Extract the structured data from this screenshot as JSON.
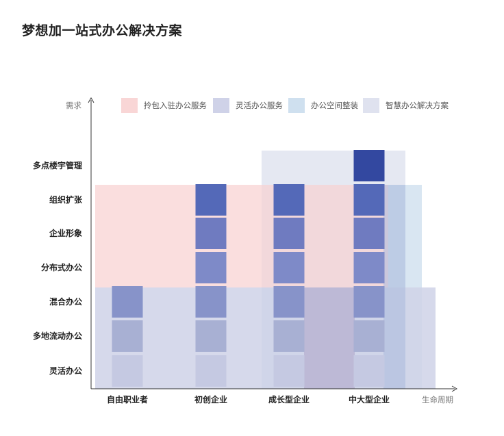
{
  "title": "梦想加一站式办公解决方案",
  "chart_data": {
    "type": "heatmap",
    "title": "梦想加一站式办公解决方案",
    "xlabel": "生命周期",
    "ylabel": "需求",
    "x_categories": [
      "自由职业者",
      "初创企业",
      "成长型企业",
      "中大型企业"
    ],
    "y_categories": [
      "灵活办公",
      "多地流动办公",
      "混合办公",
      "分布式办公",
      "企业形象",
      "组织扩张",
      "多点楼宇管理"
    ],
    "legend": [
      {
        "name": "拎包入驻办公服务",
        "color": "#f9d6d6"
      },
      {
        "name": "灵活办公服务",
        "color": "#cfd2e8"
      },
      {
        "name": "办公空间整装",
        "color": "#cfe0ef"
      },
      {
        "name": "智慧办公解决方案",
        "color": "#dfe2ef"
      }
    ],
    "service_regions": [
      {
        "service": "拎包入驻办公服务",
        "x_from": "自由职业者",
        "x_to": "中大型企业",
        "y_from": "分布式办公",
        "y_to": "组织扩张"
      },
      {
        "service": "灵活办公服务",
        "x_from": "自由职业者",
        "x_to": "中大型企业",
        "y_from": "灵活办公",
        "y_to": "混合办公"
      },
      {
        "service": "办公空间整装",
        "x_from": "成长型企业",
        "x_to": "中大型企业",
        "y_from": "灵活办公",
        "y_to": "组织扩张"
      },
      {
        "service": "智慧办公解决方案",
        "x_from": "成长型企业",
        "x_to": "中大型企业",
        "y_from": "灵活办公",
        "y_to": "多点楼宇管理"
      }
    ],
    "cells": [
      {
        "x": "自由职业者",
        "y": "灵活办公",
        "color": "#c5c9e2"
      },
      {
        "x": "自由职业者",
        "y": "多地流动办公",
        "color": "#a8b0d3"
      },
      {
        "x": "自由职业者",
        "y": "混合办公",
        "color": "#8793c9"
      },
      {
        "x": "初创企业",
        "y": "灵活办公",
        "color": "#c5c9e2"
      },
      {
        "x": "初创企业",
        "y": "多地流动办公",
        "color": "#a8b0d3"
      },
      {
        "x": "初创企业",
        "y": "混合办公",
        "color": "#8793c9"
      },
      {
        "x": "初创企业",
        "y": "分布式办公",
        "color": "#7e8ac8"
      },
      {
        "x": "初创企业",
        "y": "企业形象",
        "color": "#6f7bc0"
      },
      {
        "x": "初创企业",
        "y": "组织扩张",
        "color": "#5469b8"
      },
      {
        "x": "成长型企业",
        "y": "灵活办公",
        "color": "#c5c9e2"
      },
      {
        "x": "成长型企业",
        "y": "多地流动办公",
        "color": "#a8b0d3"
      },
      {
        "x": "成长型企业",
        "y": "混合办公",
        "color": "#8793c9"
      },
      {
        "x": "成长型企业",
        "y": "分布式办公",
        "color": "#7e8ac8"
      },
      {
        "x": "成长型企业",
        "y": "企业形象",
        "color": "#6f7bc0"
      },
      {
        "x": "成长型企业",
        "y": "组织扩张",
        "color": "#5469b8"
      },
      {
        "x": "中大型企业",
        "y": "灵活办公",
        "color": "#c5c9e2"
      },
      {
        "x": "中大型企业",
        "y": "多地流动办公",
        "color": "#a8b0d3"
      },
      {
        "x": "中大型企业",
        "y": "混合办公",
        "color": "#8793c9"
      },
      {
        "x": "中大型企业",
        "y": "分布式办公",
        "color": "#7e8ac8"
      },
      {
        "x": "中大型企业",
        "y": "企业形象",
        "color": "#6f7bc0"
      },
      {
        "x": "中大型企业",
        "y": "组织扩张",
        "color": "#5469b8"
      },
      {
        "x": "中大型企业",
        "y": "多点楼宇管理",
        "color": "#3348a0"
      }
    ]
  }
}
